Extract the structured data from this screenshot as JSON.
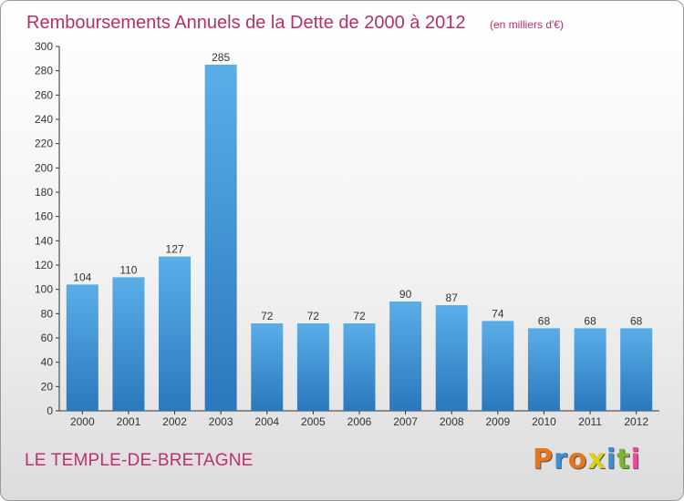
{
  "header": {
    "title": "Remboursements Annuels de la Dette de 2000 à 2012",
    "unit": "(en milliers d'€)"
  },
  "footer": {
    "commune": "LE TEMPLE-DE-BRETAGNE",
    "brand_letters": [
      "P",
      "r",
      "o",
      "x",
      "i",
      "t",
      "i"
    ],
    "brand_colors": [
      "#e8751a",
      "#3a8fd6",
      "#e8751a",
      "#d8d21c",
      "#3a8fd6",
      "#79b82e",
      "#e84f9a"
    ]
  },
  "colors": {
    "bar_top": "#5aaee8",
    "bar_bottom": "#2a78bd",
    "title": "#b5306b"
  },
  "chart_data": {
    "type": "bar",
    "categories": [
      "2000",
      "2001",
      "2002",
      "2003",
      "2004",
      "2005",
      "2006",
      "2007",
      "2008",
      "2009",
      "2010",
      "2011",
      "2012"
    ],
    "values": [
      104,
      110,
      127,
      285,
      72,
      72,
      72,
      90,
      87,
      74,
      68,
      68,
      68
    ],
    "ylim": [
      0,
      300
    ],
    "yticks": [
      0,
      20,
      40,
      60,
      80,
      100,
      120,
      140,
      160,
      180,
      200,
      220,
      240,
      260,
      280,
      300
    ],
    "grid": false,
    "data_labels": true
  }
}
